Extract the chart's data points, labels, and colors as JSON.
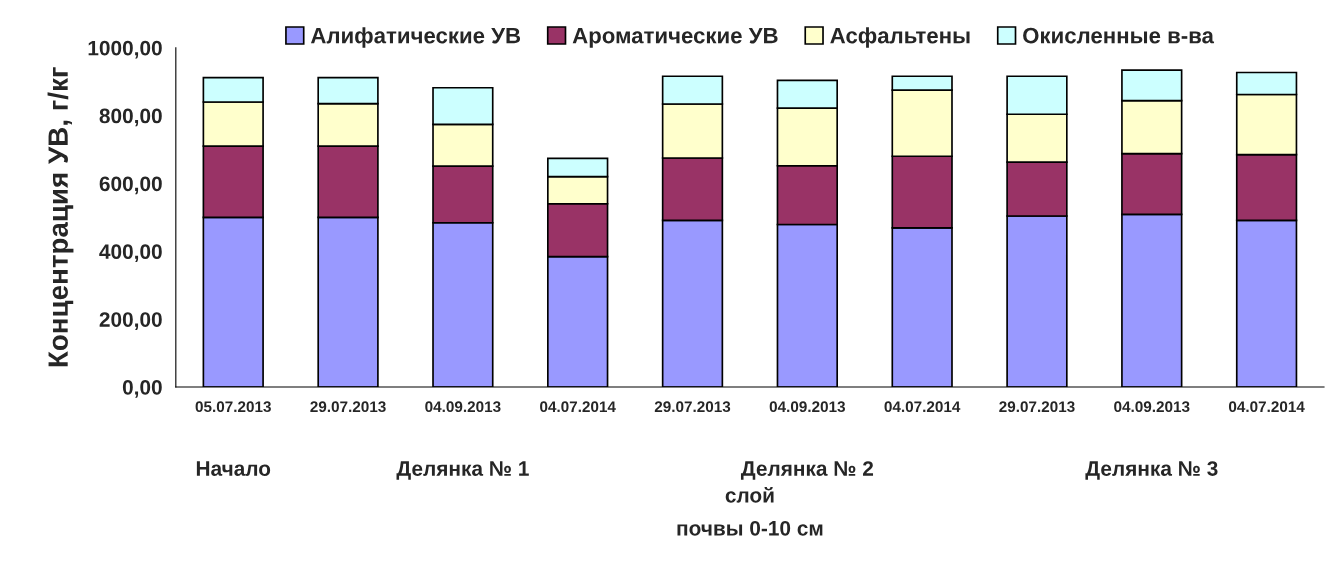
{
  "chart_data": {
    "type": "bar",
    "stacked": true,
    "categories": [
      "05.07.2013",
      "29.07.2013",
      "04.09.2013",
      "04.07.2014",
      "29.07.2013",
      "04.09.2013",
      "04.07.2014",
      "29.07.2013",
      "04.09.2013",
      "04.07.2014"
    ],
    "series": [
      {
        "name": "Алифатические УВ",
        "color": "#9999ff",
        "values": [
          500,
          500,
          484,
          384,
          491,
          479,
          469,
          504,
          509,
          491
        ]
      },
      {
        "name": "Ароматические УВ",
        "color": "#993366",
        "values": [
          210,
          210,
          167,
          156,
          184,
          173,
          211,
          159,
          179,
          194
        ]
      },
      {
        "name": "Асфальтены",
        "color": "#ffffcc",
        "values": [
          130,
          125,
          123,
          80,
          159,
          170,
          195,
          141,
          156,
          177
        ]
      },
      {
        "name": "Окисленные в-ва",
        "color": "#ccffff",
        "values": [
          72,
          77,
          108,
          54,
          82,
          82,
          41,
          112,
          90,
          65
        ]
      }
    ],
    "ylabel": "Концентрация УВ, г/кг",
    "xlabel": "слой\nпочвы 0-10 см",
    "annotations": [
      "Начало",
      "Делянка № 1",
      "Делянка № 2",
      "Делянка № 3"
    ],
    "ylim": [
      0,
      1000
    ],
    "yticks": [
      {
        "value": 0,
        "label": "0,00"
      },
      {
        "value": 200,
        "label": "200,00"
      },
      {
        "value": 400,
        "label": "400,00"
      },
      {
        "value": 600,
        "label": "600,00"
      },
      {
        "value": 800,
        "label": "800,00"
      },
      {
        "value": 1000,
        "label": "1000,00"
      }
    ],
    "grid": false,
    "legend": "top"
  }
}
